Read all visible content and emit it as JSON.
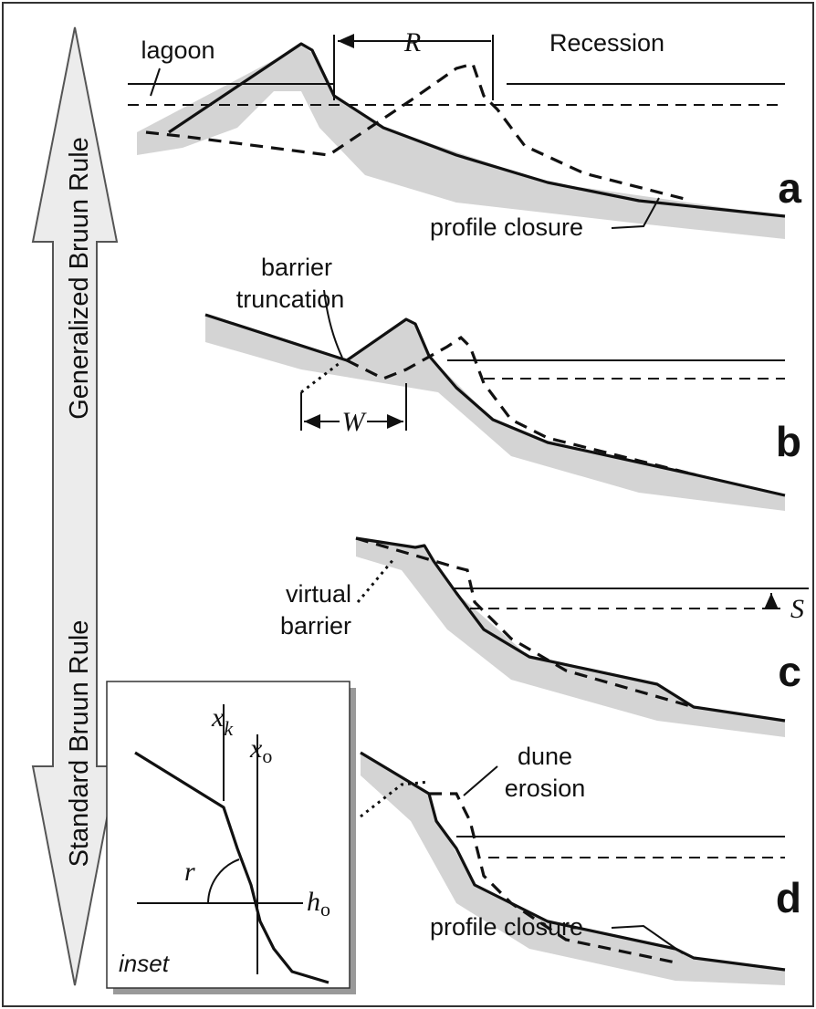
{
  "arrow": {
    "top_label": "Generalized Bruun Rule",
    "bottom_label": "Standard Bruun Rule"
  },
  "panels": [
    {
      "label": "a",
      "annotations": [
        "lagoon",
        "R",
        "Recession",
        "profile closure"
      ]
    },
    {
      "label": "b",
      "annotations": [
        [
          "barrier",
          "truncation"
        ],
        "W"
      ]
    },
    {
      "label": "c",
      "annotations": [
        [
          "virtual",
          "barrier"
        ],
        "S"
      ]
    },
    {
      "label": "d",
      "annotations": [
        [
          "dune",
          "erosion"
        ],
        "profile closure"
      ]
    }
  ],
  "inset": {
    "title": "inset",
    "x_k": {
      "base": "x",
      "sub": "k"
    },
    "x_o": {
      "base": "x",
      "sub": "o"
    },
    "r": "r",
    "h_o": {
      "base": "h",
      "sub": "o"
    }
  }
}
